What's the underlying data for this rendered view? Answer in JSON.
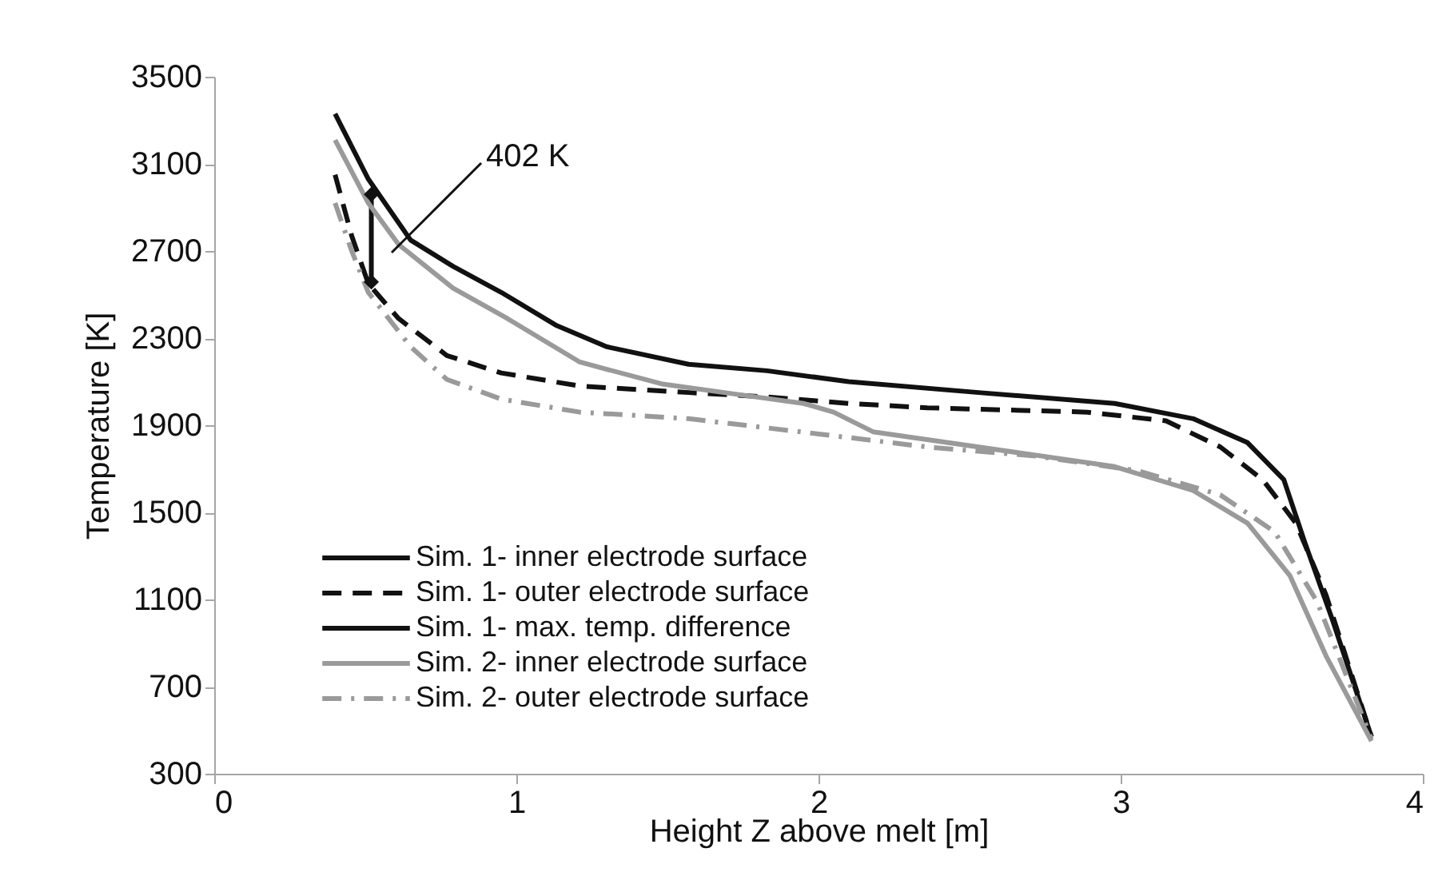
{
  "chart_data": {
    "type": "line",
    "xlabel": "Height Z above melt [m]",
    "ylabel": "Temperature [K]",
    "xlim": [
      0,
      4
    ],
    "xticks": [
      0,
      1,
      2,
      3,
      4
    ],
    "ylim": [
      300,
      3500
    ],
    "yticks": [
      300,
      700,
      1100,
      1500,
      1900,
      2300,
      2700,
      3100,
      3500
    ],
    "grid": false,
    "legend": "bottom left",
    "series": [
      {
        "name": "Sim. 1- inner electrode surface",
        "color": "#111111",
        "line_style": "solid",
        "x": [
          0.4,
          0.51,
          0.65,
          0.79,
          0.95,
          1.13,
          1.3,
          1.57,
          1.83,
          2.1,
          2.53,
          2.98,
          3.24,
          3.42,
          3.54,
          3.61,
          3.7,
          3.83
        ],
        "values": [
          3330,
          3030,
          2750,
          2630,
          2510,
          2360,
          2260,
          2180,
          2150,
          2100,
          2050,
          2000,
          1930,
          1820,
          1650,
          1360,
          1010,
          470
        ]
      },
      {
        "name": "Sim. 1- outer electrode surface",
        "color": "#111111",
        "line_style": "dashed",
        "x": [
          0.4,
          0.455,
          0.51,
          0.61,
          0.77,
          0.95,
          1.21,
          1.57,
          1.83,
          2.1,
          2.36,
          2.89,
          3.15,
          3.33,
          3.47,
          3.58,
          3.68,
          3.83
        ],
        "values": [
          3050,
          2770,
          2550,
          2390,
          2220,
          2140,
          2080,
          2050,
          2030,
          2000,
          1980,
          1960,
          1920,
          1800,
          1650,
          1450,
          1120,
          470
        ]
      },
      {
        "name": "Sim. 1- max. temp. difference",
        "color": "#111111",
        "line_style": "solid",
        "marker": "diamond",
        "x": [
          0.52,
          0.52
        ],
        "values": [
          2960,
          2558
        ]
      },
      {
        "name": "Sim. 2- inner electrode surface",
        "color": "#9a9a9a",
        "line_style": "solid",
        "x": [
          0.4,
          0.51,
          0.61,
          0.79,
          0.97,
          1.21,
          1.48,
          1.74,
          1.95,
          2.05,
          2.18,
          2.53,
          2.98,
          3.24,
          3.42,
          3.56,
          3.68,
          3.83
        ],
        "values": [
          3210,
          2920,
          2730,
          2530,
          2390,
          2190,
          2090,
          2040,
          2000,
          1960,
          1870,
          1800,
          1710,
          1600,
          1450,
          1210,
          840,
          450
        ]
      },
      {
        "name": "Sim. 2- outer electrode surface",
        "color": "#9a9a9a",
        "line_style": "dashdot",
        "x": [
          0.4,
          0.455,
          0.51,
          0.65,
          0.77,
          0.95,
          1.21,
          1.57,
          2.0,
          2.36,
          2.71,
          3.06,
          3.33,
          3.51,
          3.65,
          3.83
        ],
        "values": [
          2920,
          2700,
          2510,
          2260,
          2110,
          2020,
          1960,
          1930,
          1860,
          1800,
          1760,
          1690,
          1580,
          1410,
          1090,
          460
        ]
      }
    ],
    "annotations": [
      "402 K"
    ]
  }
}
